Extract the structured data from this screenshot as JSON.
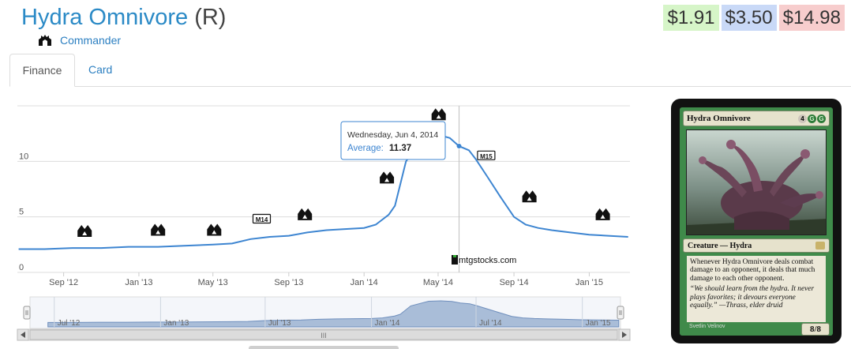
{
  "card": {
    "name": "Hydra Omnivore",
    "rarity": "(R)",
    "set_name": "Commander",
    "set_icon": "commander-set-icon"
  },
  "prices": {
    "low": "$1.91",
    "avg": "$3.50",
    "high": "$14.98",
    "colors": {
      "low": "#d6f5c8",
      "avg": "#c9d9f7",
      "high": "#f7cdcd"
    }
  },
  "tabs": [
    {
      "label": "Finance",
      "active": true
    },
    {
      "label": "Card",
      "active": false
    }
  ],
  "chart_data": {
    "type": "line",
    "series": [
      {
        "name": "Average",
        "color": "#3d85d1",
        "x": [
          "2012-06-20",
          "2012-08-01",
          "2012-09-15",
          "2012-11-01",
          "2012-12-15",
          "2013-02-01",
          "2013-03-15",
          "2013-05-01",
          "2013-06-01",
          "2013-07-01",
          "2013-08-01",
          "2013-09-01",
          "2013-10-01",
          "2013-11-01",
          "2013-12-01",
          "2014-01-01",
          "2014-01-20",
          "2014-02-10",
          "2014-02-20",
          "2014-03-10",
          "2014-04-10",
          "2014-05-01",
          "2014-05-20",
          "2014-06-04",
          "2014-06-20",
          "2014-07-01",
          "2014-07-20",
          "2014-08-10",
          "2014-09-01",
          "2014-09-20",
          "2014-10-10",
          "2014-11-01",
          "2014-12-01",
          "2015-01-01",
          "2015-02-01",
          "2015-03-05"
        ],
        "y": [
          2.1,
          2.1,
          2.2,
          2.2,
          2.3,
          2.3,
          2.4,
          2.5,
          2.6,
          3.0,
          3.2,
          3.3,
          3.6,
          3.8,
          3.9,
          4.0,
          4.3,
          5.2,
          6.0,
          10.0,
          12.2,
          12.4,
          12.1,
          11.37,
          11.0,
          10.2,
          8.6,
          6.8,
          5.0,
          4.3,
          4.0,
          3.8,
          3.6,
          3.4,
          3.3,
          3.2
        ]
      }
    ],
    "x_ticks": [
      "Sep '12",
      "Jan '13",
      "May '13",
      "Sep '13",
      "Jan '14",
      "May '14",
      "Sep '14",
      "Jan '15"
    ],
    "y_ticks": [
      "0",
      "5",
      "10"
    ],
    "ylim": [
      0,
      15
    ],
    "grid": true,
    "watermark": "mtgstocks.com",
    "tooltip": {
      "date": "Wednesday, Jun 4, 2014",
      "series_label": "Average:",
      "value": "11.37"
    },
    "set_release_markers": [
      {
        "date": "2012-10-05",
        "value": 3.7,
        "icon": "return-to-ravnica-set-icon"
      },
      {
        "date": "2013-02-01",
        "value": 3.8,
        "icon": "gatecrash-set-icon"
      },
      {
        "date": "2013-05-03",
        "value": 3.8,
        "icon": "dragons-maze-set-icon"
      },
      {
        "date": "2013-07-19",
        "value": 4.8,
        "label": "M14",
        "icon": "magic-2014-set-icon"
      },
      {
        "date": "2013-09-27",
        "value": 5.2,
        "icon": "theros-set-icon"
      },
      {
        "date": "2014-02-07",
        "value": 8.5,
        "icon": "born-of-the-gods-set-icon"
      },
      {
        "date": "2014-05-02",
        "value": 14.2,
        "icon": "journey-into-nyx-set-icon"
      },
      {
        "date": "2014-07-18",
        "value": 10.5,
        "label": "M15",
        "icon": "magic-2015-set-icon"
      },
      {
        "date": "2014-09-26",
        "value": 6.8,
        "icon": "khans-of-tarkir-set-icon"
      },
      {
        "date": "2015-01-23",
        "value": 5.2,
        "icon": "fate-reforged-set-icon"
      }
    ],
    "navigator": {
      "ticks": [
        "Jul '12",
        "Jan '13",
        "Jul '13",
        "Jan '14",
        "Jul '14",
        "Jan '15"
      ],
      "scrollbar_grip": "III"
    }
  },
  "card_image": {
    "name": "Hydra Omnivore",
    "mana_cost": [
      "4",
      "G",
      "G"
    ],
    "type_line": "Creature — Hydra",
    "rules_text": "Whenever Hydra Omnivore deals combat damage to an opponent, it deals that much damage to each other opponent.",
    "flavor_text": "“We should learn from the hydra. It never plays favorites; it devours everyone equally.” —Thrass, elder druid",
    "artist": "Svetlin Velinov",
    "power_toughness": "8/8"
  }
}
